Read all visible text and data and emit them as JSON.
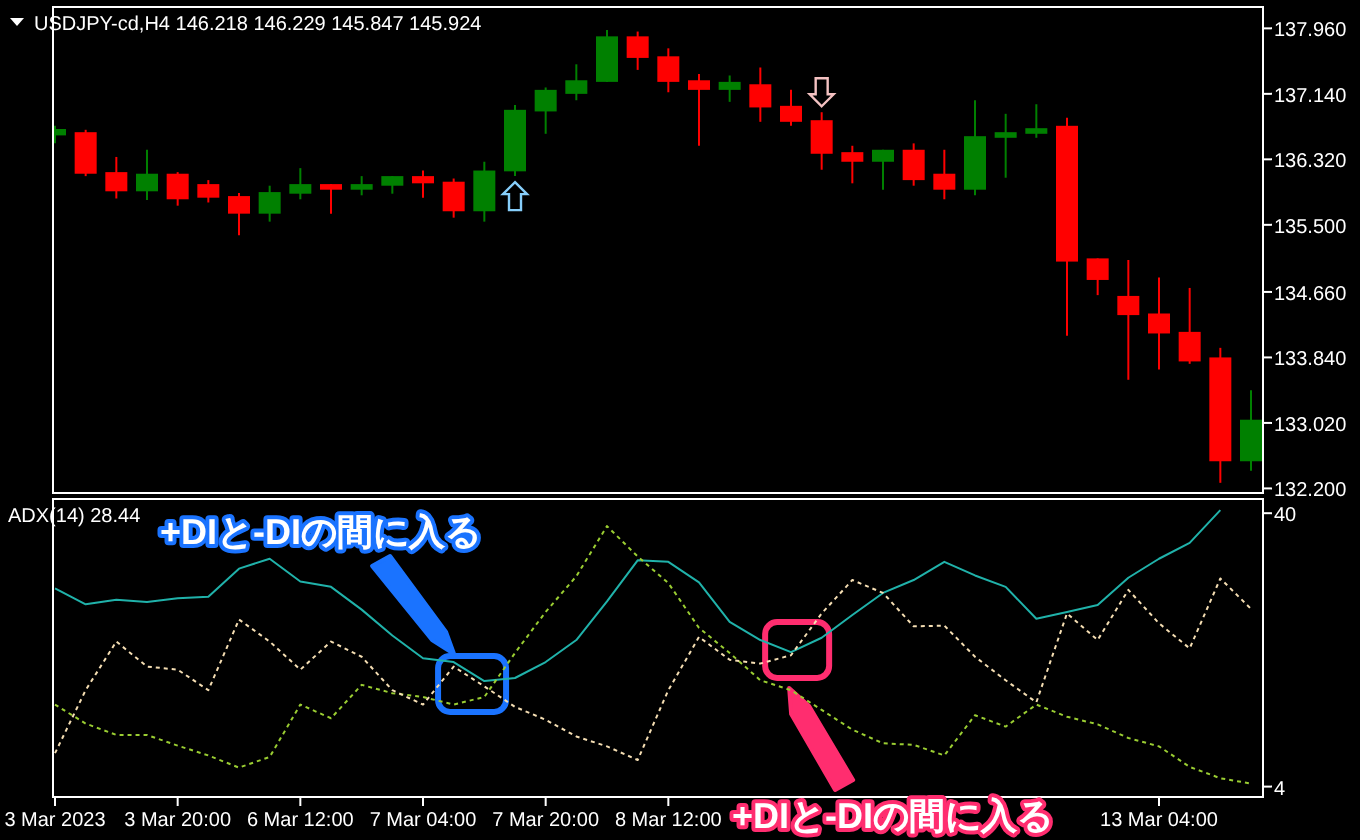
{
  "chart_data": [
    {
      "type": "candlestick",
      "title": "USDJPY-cd,H4  146.218 146.229 145.847 145.924",
      "categories": [
        null,
        null,
        null,
        null,
        null,
        null,
        null,
        null,
        null,
        null,
        null,
        null,
        null,
        null,
        null,
        null,
        null,
        null,
        null,
        null,
        null,
        null,
        null,
        null,
        null,
        null,
        null,
        null,
        null,
        null,
        null,
        null,
        null,
        null,
        null,
        null,
        null,
        null,
        null,
        null
      ],
      "ohlc": [
        [
          136.62,
          136.74,
          136.52,
          136.7
        ],
        [
          136.66,
          136.69,
          136.11,
          136.14
        ],
        [
          136.16,
          136.35,
          135.83,
          135.92
        ],
        [
          135.92,
          136.44,
          135.81,
          136.14
        ],
        [
          136.14,
          136.16,
          135.74,
          135.82
        ],
        [
          136.01,
          136.06,
          135.78,
          135.84
        ],
        [
          135.86,
          135.9,
          135.37,
          135.64
        ],
        [
          135.64,
          135.99,
          135.54,
          135.91
        ],
        [
          135.89,
          136.21,
          135.82,
          136.01
        ],
        [
          136.01,
          136.01,
          135.64,
          135.94
        ],
        [
          135.94,
          136.11,
          135.87,
          136.01
        ],
        [
          135.99,
          136.11,
          135.89,
          136.11
        ],
        [
          136.11,
          136.18,
          135.84,
          136.02
        ],
        [
          136.04,
          136.08,
          135.59,
          135.67
        ],
        [
          135.67,
          136.29,
          135.54,
          136.18
        ],
        [
          136.17,
          137.0,
          136.11,
          136.94
        ],
        [
          136.92,
          137.22,
          136.64,
          137.19
        ],
        [
          137.14,
          137.51,
          137.06,
          137.31
        ],
        [
          137.29,
          137.94,
          137.29,
          137.86
        ],
        [
          137.86,
          137.92,
          137.44,
          137.59
        ],
        [
          137.61,
          137.71,
          137.16,
          137.29
        ],
        [
          137.31,
          137.39,
          136.49,
          137.19
        ],
        [
          137.19,
          137.37,
          137.04,
          137.29
        ],
        [
          137.26,
          137.47,
          136.79,
          136.97
        ],
        [
          136.99,
          137.19,
          136.74,
          136.79
        ],
        [
          136.81,
          136.91,
          136.19,
          136.39
        ],
        [
          136.41,
          136.49,
          136.02,
          136.29
        ],
        [
          136.29,
          136.44,
          135.94,
          136.44
        ],
        [
          136.44,
          136.52,
          135.99,
          136.06
        ],
        [
          136.14,
          136.44,
          135.82,
          135.94
        ],
        [
          135.94,
          137.06,
          135.87,
          136.61
        ],
        [
          136.59,
          136.89,
          136.09,
          136.66
        ],
        [
          136.64,
          137.01,
          136.59,
          136.71
        ],
        [
          136.74,
          136.84,
          134.11,
          135.04
        ],
        [
          135.08,
          135.08,
          134.62,
          134.81
        ],
        [
          134.61,
          135.06,
          133.56,
          134.37
        ],
        [
          134.39,
          134.84,
          133.69,
          134.14
        ],
        [
          134.16,
          134.71,
          133.76,
          133.79
        ],
        [
          133.84,
          133.96,
          132.27,
          132.54
        ],
        [
          132.54,
          133.43,
          132.42,
          133.06
        ]
      ],
      "colors": [
        "#008000",
        "#ff0000",
        "#ff0000",
        "#008000",
        "#ff0000",
        "#ff0000",
        "#ff0000",
        "#008000",
        "#008000",
        "#ff0000",
        "#008000",
        "#008000",
        "#ff0000",
        "#ff0000",
        "#008000",
        "#008000",
        "#008000",
        "#008000",
        "#008000",
        "#ff0000",
        "#ff0000",
        "#ff0000",
        "#008000",
        "#ff0000",
        "#ff0000",
        "#ff0000",
        "#ff0000",
        "#008000",
        "#ff0000",
        "#ff0000",
        "#008000",
        "#008000",
        "#008000",
        "#ff0000",
        "#ff0000",
        "#ff0000",
        "#ff0000",
        "#ff0000",
        "#ff0000",
        "#008000"
      ],
      "ylim": [
        132.13,
        138.24
      ],
      "yticks": [
        {
          "value": 137.96,
          "label": "137.960"
        },
        {
          "value": 137.14,
          "label": "137.140"
        },
        {
          "value": 136.32,
          "label": "136.320"
        },
        {
          "value": 135.5,
          "label": "135.500"
        },
        {
          "value": 134.66,
          "label": "134.660"
        },
        {
          "value": 133.84,
          "label": "133.840"
        },
        {
          "value": 133.02,
          "label": "133.020"
        },
        {
          "value": 132.2,
          "label": "132.200"
        }
      ],
      "tick_labels": "y"
    },
    {
      "type": "line",
      "title": "ADX(14) 28.44",
      "categories": [
        "3 Mar 2023",
        null,
        null,
        null,
        "3 Mar 20:00",
        null,
        null,
        null,
        "6 Mar 12:00",
        null,
        null,
        null,
        "7 Mar 04:00",
        null,
        null,
        null,
        "7 Mar 20:00",
        null,
        null,
        null,
        "8 Mar 12:00",
        null,
        null,
        null,
        null,
        null,
        null,
        null,
        null,
        null,
        null,
        null,
        null,
        null,
        null,
        null,
        "13 Mar 04:00",
        null,
        null,
        null
      ],
      "series": [
        {
          "color": "#20b2aa",
          "line_style": "solid",
          "values": [
            30.1,
            28.0,
            28.6,
            28.3,
            28.8,
            29.0,
            32.7,
            34.0,
            31.0,
            30.3,
            27.3,
            23.9,
            20.9,
            20.4,
            17.9,
            18.3,
            20.4,
            23.3,
            28.4,
            33.8,
            33.6,
            30.9,
            25.7,
            23.3,
            21.7,
            23.6,
            26.6,
            29.5,
            31.2,
            33.6,
            31.8,
            30.3,
            26.1,
            27.0,
            27.9,
            31.5,
            34.0,
            36.1,
            40.4,
            null
          ]
        },
        {
          "color": "#9acd32",
          "line_style": "dotted",
          "values": [
            14.8,
            12.3,
            10.8,
            10.8,
            9.4,
            8.1,
            6.5,
            7.9,
            14.8,
            13.0,
            17.4,
            16.3,
            15.8,
            14.8,
            15.8,
            21.6,
            27.0,
            31.7,
            38.3,
            34.3,
            30.8,
            24.9,
            21.6,
            18.0,
            16.7,
            14.1,
            11.5,
            9.7,
            9.5,
            8.1,
            13.4,
            11.9,
            14.8,
            13.2,
            12.2,
            10.4,
            9.3,
            6.6,
            5.1,
            4.4
          ]
        },
        {
          "color": "#f5deb3",
          "line_style": "dotted",
          "values": [
            8.4,
            16.7,
            23.1,
            19.8,
            19.4,
            16.7,
            26.0,
            23.1,
            19.4,
            23.1,
            21.1,
            16.7,
            14.8,
            19.8,
            17.2,
            14.5,
            12.8,
            10.6,
            9.3,
            7.5,
            16.7,
            23.7,
            20.7,
            20.2,
            21.3,
            26.8,
            31.2,
            29.5,
            25.1,
            25.2,
            21.1,
            18.0,
            15.1,
            26.8,
            23.3,
            29.9,
            25.5,
            22.2,
            31.4,
            27.4
          ]
        }
      ],
      "ylim": [
        2.5,
        42
      ],
      "yticks": [
        40,
        4
      ],
      "annotations": [
        "+DIと-DIの間に入る",
        "+DIと-DIの間に入る"
      ]
    }
  ]
}
